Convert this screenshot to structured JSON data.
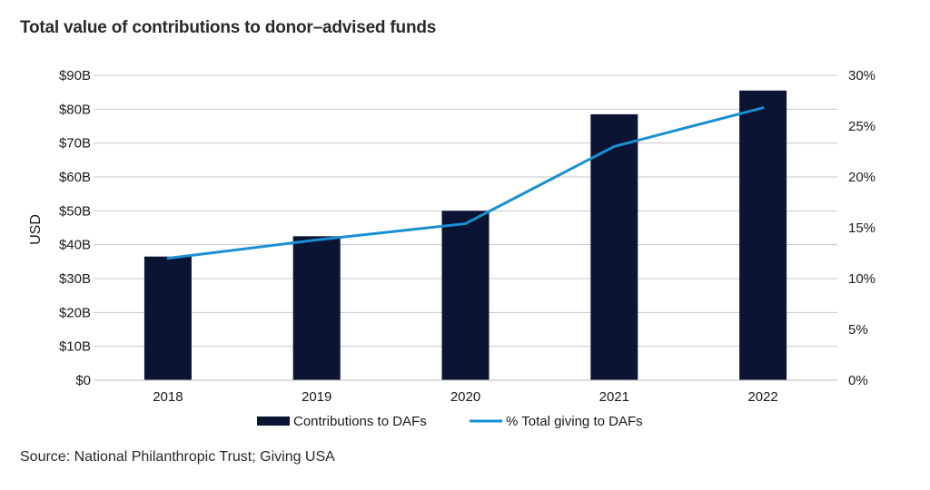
{
  "title": "Total value of contributions to donor–advised funds",
  "source": "Source: National Philanthropic Trust; Giving USA",
  "colors": {
    "bar": "#0b1533",
    "line": "#1a8fd1",
    "grid": "#c8c8c8"
  },
  "chart_data": {
    "type": "bar",
    "categories": [
      "2018",
      "2019",
      "2020",
      "2021",
      "2022"
    ],
    "series": [
      {
        "name": "Contributions to DAFs",
        "type": "bar",
        "axis": "left",
        "values": [
          36.5,
          42.5,
          50.0,
          78.5,
          85.5
        ]
      },
      {
        "name": "% Total giving to DAFs",
        "type": "line",
        "axis": "right",
        "values": [
          12.0,
          13.8,
          15.4,
          23.0,
          26.8
        ]
      }
    ],
    "ylabel": "USD",
    "ylim": [
      0,
      90
    ],
    "yticks": [
      0,
      10,
      20,
      30,
      40,
      50,
      60,
      70,
      80,
      90
    ],
    "ytick_labels": [
      "$0",
      "$10B",
      "$20B",
      "$30B",
      "$40B",
      "$50B",
      "$60B",
      "$70B",
      "$80B",
      "$90B"
    ],
    "y2lim": [
      0,
      30
    ],
    "y2ticks": [
      0,
      5,
      10,
      15,
      20,
      25,
      30
    ],
    "y2tick_labels": [
      "0%",
      "5%",
      "10%",
      "15%",
      "20%",
      "25%",
      "30%"
    ],
    "grid": true,
    "legend_position": "bottom"
  }
}
